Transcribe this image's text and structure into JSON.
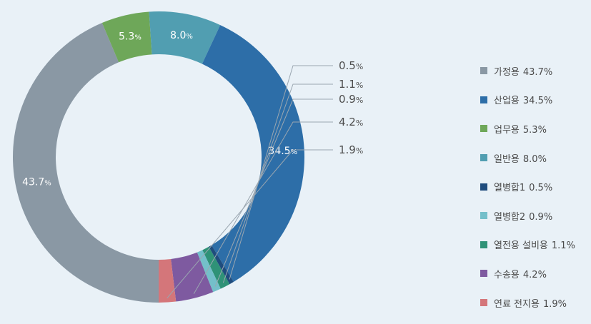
{
  "chart_data": {
    "type": "pie",
    "donut": true,
    "legend_position": "right",
    "slices": [
      {
        "name": "가정용",
        "value": 43.7,
        "label": "43.7",
        "color": "#8a98a4",
        "label_style": "inside"
      },
      {
        "name": "업무용",
        "value": 5.3,
        "label": "5.3",
        "color": "#6ea759",
        "label_style": "inside"
      },
      {
        "name": "일반용",
        "value": 8.0,
        "label": "8.0",
        "color": "#519eb1",
        "label_style": "inside"
      },
      {
        "name": "산업용",
        "value": 34.5,
        "label": "34.5",
        "color": "#2d6ea8",
        "label_style": "inside"
      },
      {
        "name": "열병합1",
        "value": 0.5,
        "label": "0.5",
        "color": "#1f4c7d",
        "label_style": "callout"
      },
      {
        "name": "열전용 설비용",
        "value": 1.1,
        "label": "1.1",
        "color": "#2f9277",
        "label_style": "callout"
      },
      {
        "name": "열병합2",
        "value": 0.9,
        "label": "0.9",
        "color": "#74bfca",
        "label_style": "callout"
      },
      {
        "name": "수송용",
        "value": 4.2,
        "label": "4.2",
        "color": "#7e5aa0",
        "label_style": "callout"
      },
      {
        "name": "연료 전지용",
        "value": 1.9,
        "label": "1.9",
        "color": "#d4767a",
        "label_style": "callout"
      }
    ],
    "percent_sign": "%",
    "legend": [
      {
        "label": "가정용",
        "pct": "43.7%",
        "color": "#8a98a4"
      },
      {
        "label": "산업용",
        "pct": "34.5%",
        "color": "#2d6ea8"
      },
      {
        "label": "업무용",
        "pct": "5.3%",
        "color": "#6ea759"
      },
      {
        "label": "일반용",
        "pct": "8.0%",
        "color": "#519eb1"
      },
      {
        "label": "열병합1",
        "pct": "0.5%",
        "color": "#1f4c7d"
      },
      {
        "label": "열병합2",
        "pct": "0.9%",
        "color": "#74bfca"
      },
      {
        "label": "열전용 설비용",
        "pct": "1.1%",
        "color": "#2f9277"
      },
      {
        "label": "수송용",
        "pct": "4.2%",
        "color": "#7e5aa0"
      },
      {
        "label": "연료 전지용",
        "pct": "1.9%",
        "color": "#d4767a"
      }
    ]
  }
}
